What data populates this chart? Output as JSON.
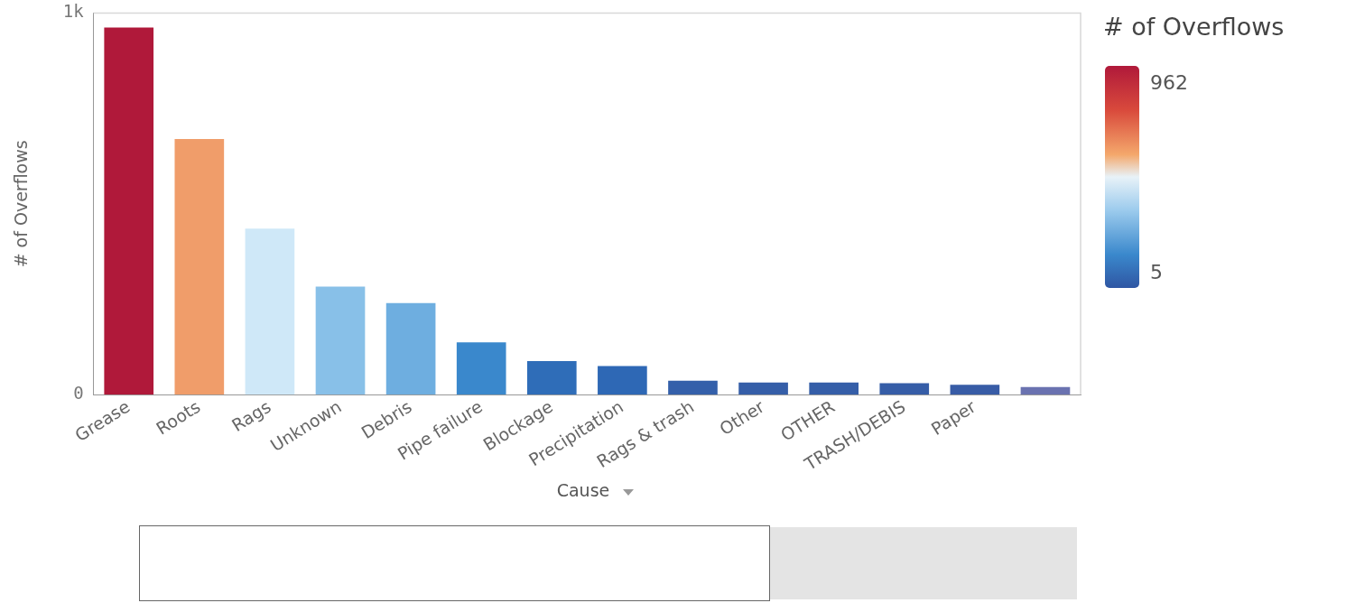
{
  "chart_data": {
    "type": "bar",
    "xlabel": "Cause",
    "ylabel": "# of Overflows",
    "clabel": "# of Overflows",
    "categories": [
      "Grease",
      "Roots",
      "Rags",
      "Unknown",
      "Debris",
      "Pipe failure",
      "Blockage",
      "Precipitation",
      "Rags & trash",
      "Other",
      "OTHER",
      "TRASH/DEBIS",
      "Paper",
      null
    ],
    "values": [
      962,
      670,
      435,
      283,
      240,
      137,
      88,
      75,
      37,
      32,
      32,
      30,
      26,
      20
    ],
    "colors": [
      "#b0193a",
      "#f09d6a",
      "#cfe8f8",
      "#88c0e8",
      "#6eaee0",
      "#3a88cc",
      "#2f6db8",
      "#2e68b5",
      "#3460aa",
      "#355ea8",
      "#355ea8",
      "#365da7",
      "#385ca6",
      "#6a72b0"
    ],
    "ylim": [
      0,
      1000
    ],
    "yticks": [
      0,
      {
        "value": 1000,
        "label": "1k"
      }
    ],
    "clim": [
      5,
      962
    ],
    "cticks": [
      5,
      962
    ],
    "grid": false,
    "legend": false
  }
}
